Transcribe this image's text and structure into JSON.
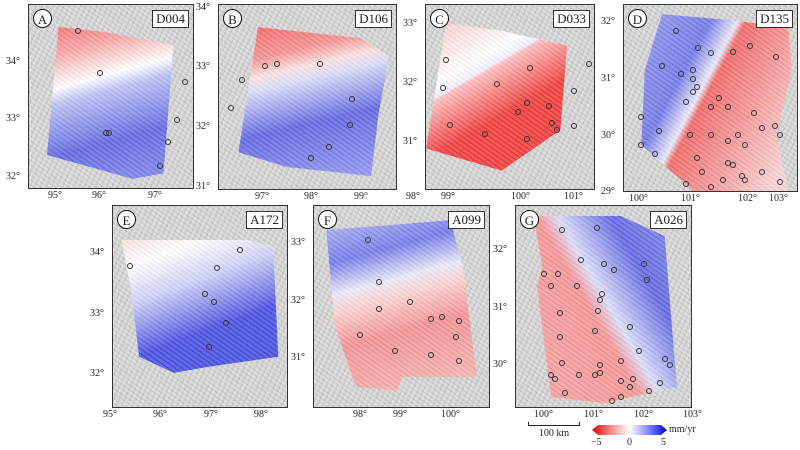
{
  "panels": [
    {
      "letter": "A",
      "track": "D004",
      "lon_ticks": [
        "95°",
        "96°",
        "97°"
      ],
      "lat_ticks": [
        "34°",
        "33°",
        "32°"
      ]
    },
    {
      "letter": "B",
      "track": "D106",
      "lon_ticks": [
        "97°",
        "98°",
        "99°"
      ],
      "lat_ticks": [
        "34°",
        "33°",
        "32°",
        "31°"
      ]
    },
    {
      "letter": "C",
      "track": "D033",
      "lon_ticks": [
        "98°",
        "99°",
        "100°",
        "101°"
      ],
      "lat_ticks": [
        "33°",
        "32°",
        "31°"
      ]
    },
    {
      "letter": "D",
      "track": "D135",
      "lon_ticks": [
        "100°",
        "101°",
        "102°",
        "103°"
      ],
      "lat_ticks": [
        "32°",
        "31°",
        "30°",
        "29°"
      ]
    },
    {
      "letter": "E",
      "track": "A172",
      "lon_ticks": [
        "95°",
        "96°",
        "97°",
        "98°"
      ],
      "lat_ticks": [
        "34°",
        "33°",
        "32°"
      ]
    },
    {
      "letter": "F",
      "track": "A099",
      "lon_ticks": [
        "98°",
        "99°",
        "100°"
      ],
      "lat_ticks": [
        "33°",
        "32°",
        "31°"
      ]
    },
    {
      "letter": "G",
      "track": "A026",
      "lon_ticks": [
        "100°",
        "101°",
        "102°",
        "103°"
      ],
      "lat_ticks": [
        "32°",
        "31°",
        "30°"
      ]
    }
  ],
  "scale_bar": {
    "label": "100 km"
  },
  "colorbar": {
    "min": "−5",
    "mid": "0",
    "max": "5",
    "unit": "mm/yr",
    "colors": {
      "negative": "#e00000",
      "zero": "#ffffff",
      "positive": "#0000d0"
    },
    "extend": "both"
  }
}
